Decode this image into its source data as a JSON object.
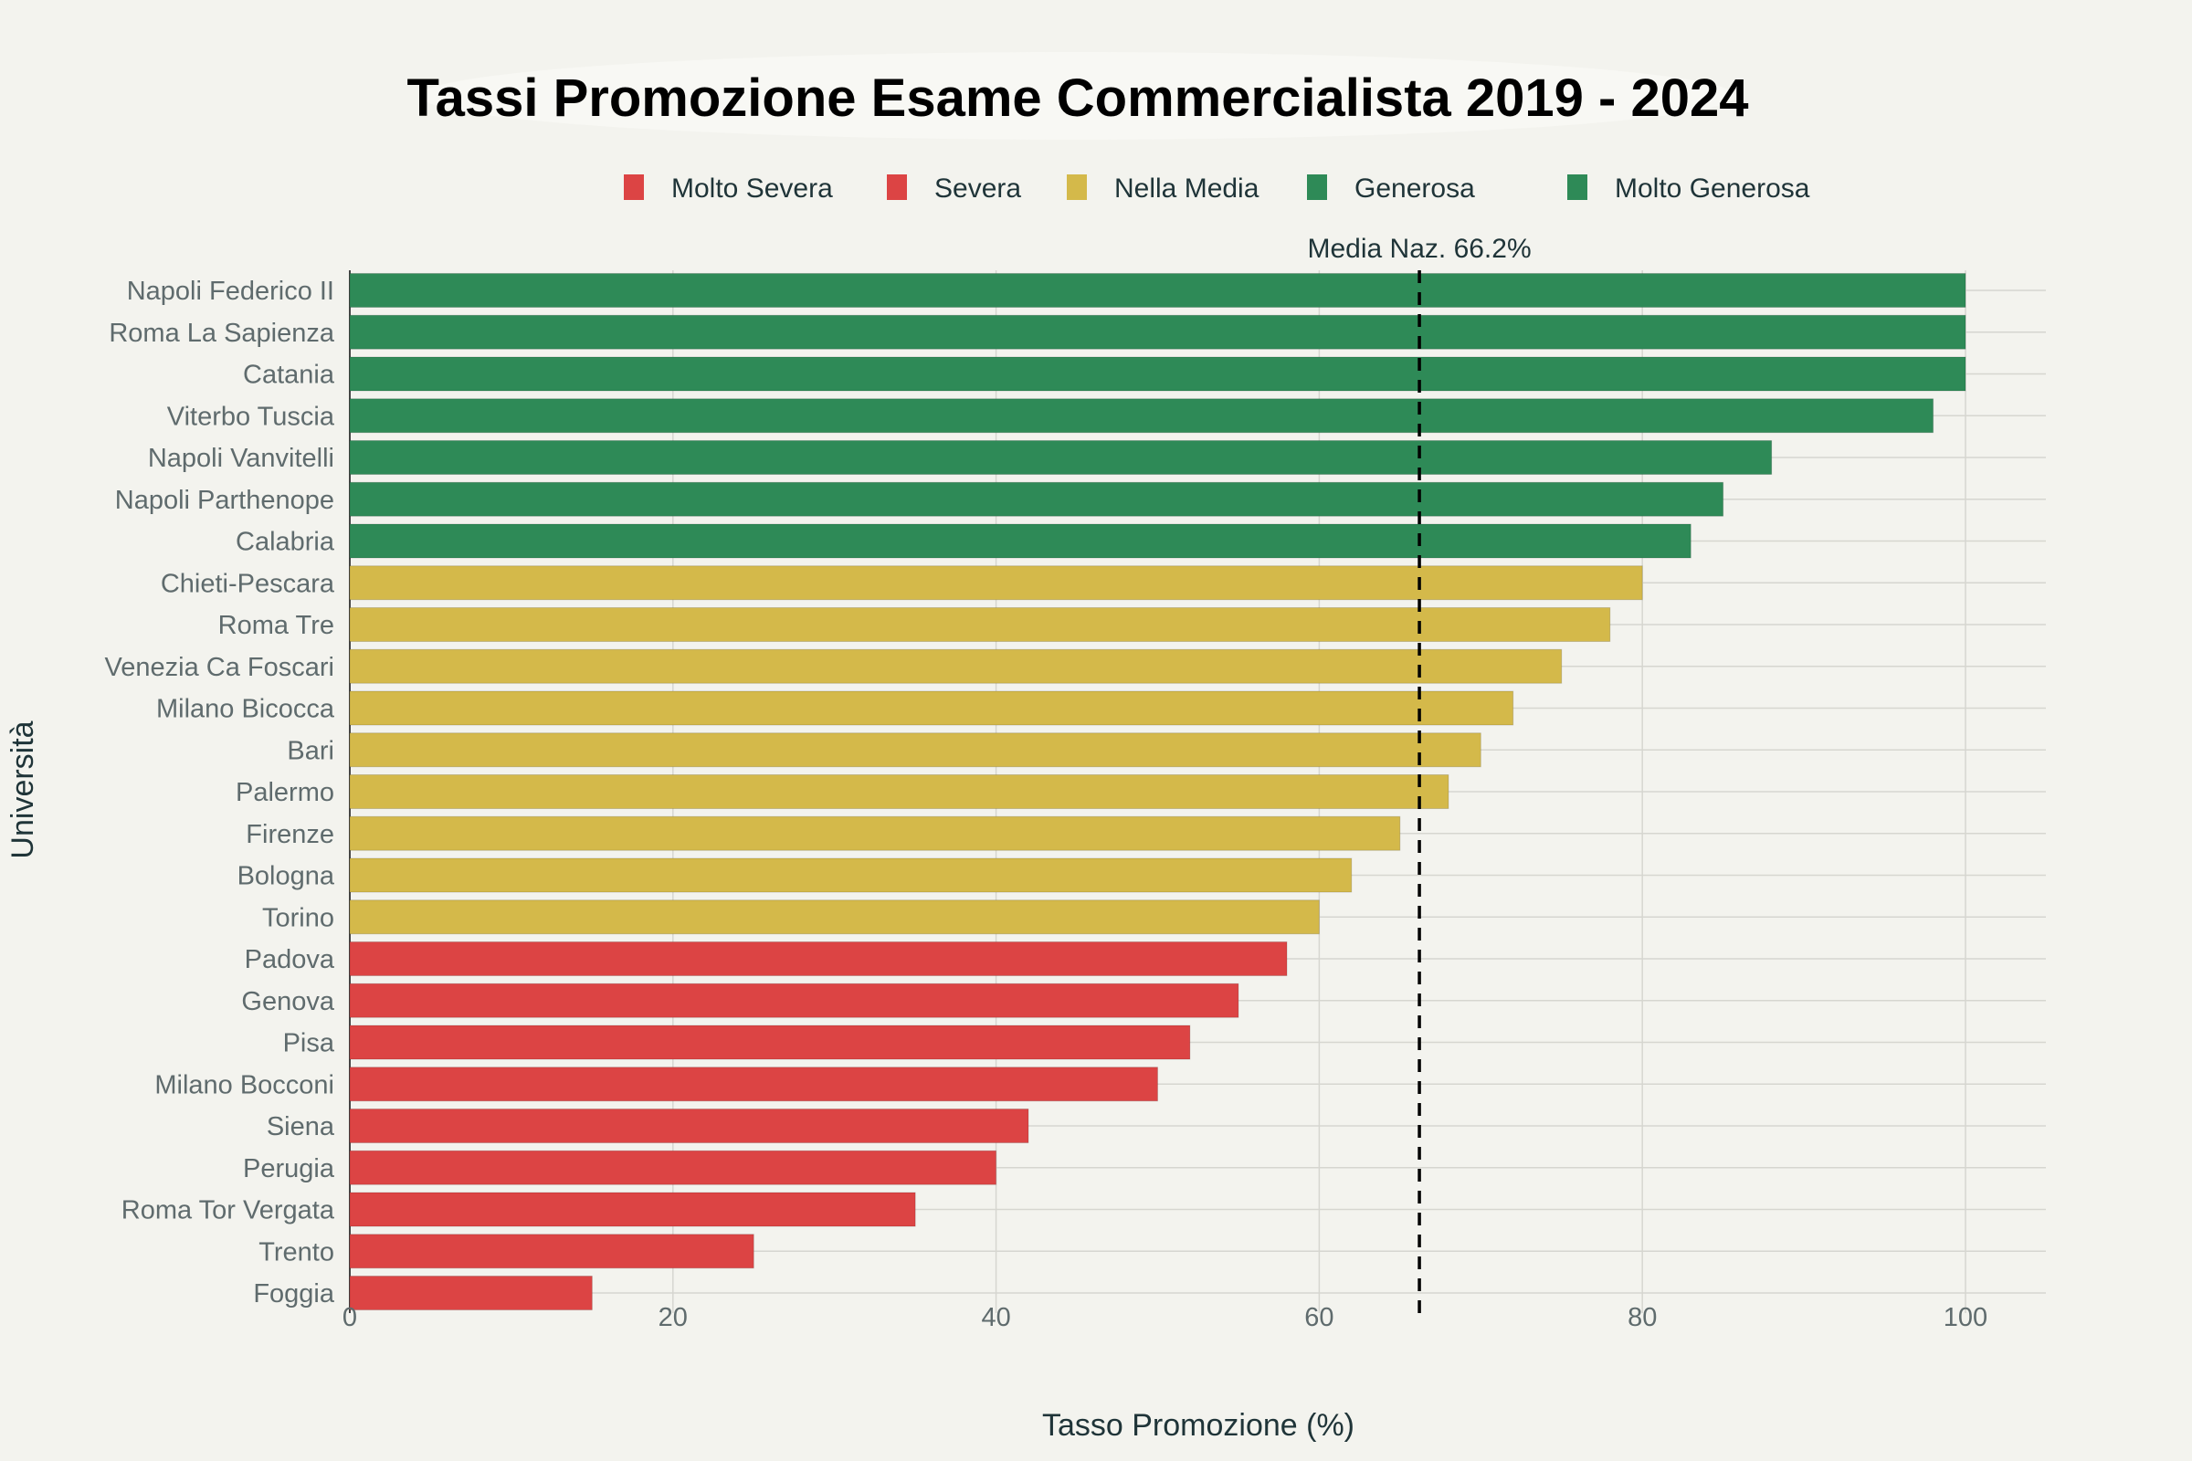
{
  "chart_data": {
    "type": "bar",
    "orientation": "horizontal",
    "title": "Tassi Promozione Esame Commercialista 2019 - 2024",
    "xlabel": "Tasso Promozione (%)",
    "ylabel": "Università",
    "xlim": [
      0,
      105
    ],
    "xticks": [
      0,
      20,
      40,
      60,
      80,
      100
    ],
    "grid": true,
    "legend_position": "top",
    "legend": [
      {
        "name": "Molto Severa",
        "color": "#dc4444"
      },
      {
        "name": "Severa",
        "color": "#dc4444"
      },
      {
        "name": "Nella Media",
        "color": "#d4b94a"
      },
      {
        "name": "Generosa",
        "color": "#2e8a57"
      },
      {
        "name": "Molto Generosa",
        "color": "#2e8a57"
      }
    ],
    "reference_line": {
      "value": 66.2,
      "label": "Media Naz. 66.2%",
      "style": "dashed",
      "color": "#000000"
    },
    "categories": [
      "Napoli Federico II",
      "Roma La Sapienza",
      "Catania",
      "Viterbo Tuscia",
      "Napoli Vanvitelli",
      "Napoli Parthenope",
      "Calabria",
      "Chieti-Pescara",
      "Roma Tre",
      "Venezia Ca Foscari",
      "Milano Bicocca",
      "Bari",
      "Palermo",
      "Firenze",
      "Bologna",
      "Torino",
      "Padova",
      "Genova",
      "Pisa",
      "Milano Bocconi",
      "Siena",
      "Perugia",
      "Roma Tor Vergata",
      "Trento",
      "Foggia"
    ],
    "values": [
      100,
      100,
      100,
      98,
      88,
      85,
      83,
      80,
      78,
      75,
      72,
      70,
      68,
      65,
      62,
      60,
      58,
      55,
      52,
      50,
      42,
      40,
      35,
      25,
      15
    ],
    "groups": [
      "Generosa",
      "Generosa",
      "Generosa",
      "Generosa",
      "Generosa",
      "Generosa",
      "Generosa",
      "Nella Media",
      "Nella Media",
      "Nella Media",
      "Nella Media",
      "Nella Media",
      "Nella Media",
      "Nella Media",
      "Nella Media",
      "Nella Media",
      "Severa",
      "Severa",
      "Severa",
      "Severa",
      "Severa",
      "Severa",
      "Severa",
      "Severa",
      "Severa"
    ]
  }
}
